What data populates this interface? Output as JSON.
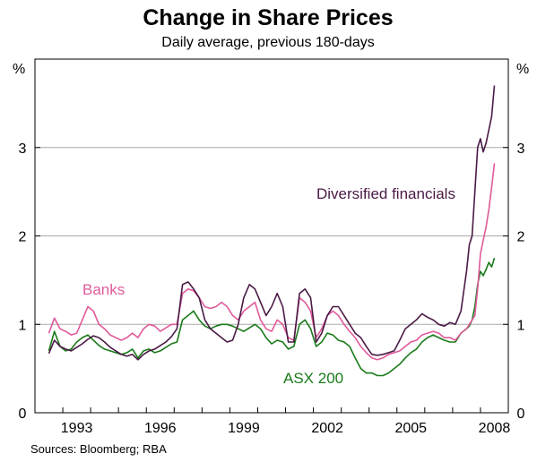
{
  "chart_data": {
    "type": "line",
    "title": "Change in Share Prices",
    "subtitle": "Daily average, previous 180-days",
    "unit_left": "%",
    "unit_right": "%",
    "source": "Sources: Bloomberg; RBA",
    "xlabel": "",
    "ylabel": "",
    "ylim": [
      0,
      4
    ],
    "xlim": [
      1992.0,
      2009.0
    ],
    "yticks": [
      "0",
      "1",
      "2",
      "3"
    ],
    "ytick_values": [
      0,
      1,
      2,
      3
    ],
    "xticks": [
      "1993",
      "1996",
      "1999",
      "2002",
      "2005",
      "2008"
    ],
    "xtick_values": [
      1993,
      1996,
      1999,
      2002,
      2005,
      2008
    ],
    "grid": "horizontal",
    "colors": {
      "diversified": "#4a1a45",
      "banks": "#e05a9a",
      "asx": "#1a7a1a",
      "axis": "#000000",
      "grid": "#aaaaaa"
    },
    "series": [
      {
        "name": "Diversified financials",
        "color": "#4a1a45",
        "label": "Diversified financials",
        "x": [
          1992.5,
          1992.7,
          1992.9,
          1993.1,
          1993.3,
          1993.5,
          1993.7,
          1993.9,
          1994.1,
          1994.3,
          1994.5,
          1994.7,
          1994.9,
          1995.1,
          1995.3,
          1995.5,
          1995.7,
          1995.9,
          1996.1,
          1996.3,
          1996.5,
          1996.7,
          1996.9,
          1997.1,
          1997.3,
          1997.5,
          1997.7,
          1997.9,
          1998.1,
          1998.3,
          1998.5,
          1998.7,
          1998.9,
          1999.1,
          1999.3,
          1999.5,
          1999.7,
          1999.9,
          2000.1,
          2000.3,
          2000.5,
          2000.7,
          2000.9,
          2001.1,
          2001.3,
          2001.5,
          2001.7,
          2001.9,
          2002.1,
          2002.3,
          2002.5,
          2002.7,
          2002.9,
          2003.1,
          2003.3,
          2003.5,
          2003.7,
          2003.9,
          2004.1,
          2004.3,
          2004.5,
          2004.7,
          2004.9,
          2005.1,
          2005.3,
          2005.5,
          2005.7,
          2005.9,
          2006.1,
          2006.3,
          2006.5,
          2006.7,
          2006.9,
          2007.1,
          2007.3,
          2007.5,
          2007.6,
          2007.7,
          2007.8,
          2007.9,
          2008.0,
          2008.1,
          2008.2,
          2008.3,
          2008.4,
          2008.5
        ],
        "values": [
          0.67,
          0.82,
          0.75,
          0.72,
          0.7,
          0.74,
          0.78,
          0.83,
          0.87,
          0.85,
          0.8,
          0.74,
          0.7,
          0.66,
          0.64,
          0.66,
          0.6,
          0.66,
          0.7,
          0.72,
          0.76,
          0.8,
          0.86,
          0.95,
          1.45,
          1.48,
          1.4,
          1.3,
          1.05,
          0.95,
          0.9,
          0.85,
          0.8,
          0.82,
          1.0,
          1.3,
          1.45,
          1.4,
          1.25,
          1.1,
          1.2,
          1.35,
          1.2,
          0.8,
          0.8,
          1.35,
          1.4,
          1.3,
          0.8,
          0.9,
          1.1,
          1.2,
          1.2,
          1.1,
          1.0,
          0.9,
          0.85,
          0.75,
          0.66,
          0.65,
          0.66,
          0.68,
          0.7,
          0.82,
          0.95,
          1.0,
          1.05,
          1.12,
          1.08,
          1.05,
          1.0,
          0.98,
          1.02,
          1.0,
          1.15,
          1.6,
          1.9,
          2.0,
          2.5,
          3.0,
          3.1,
          2.95,
          3.05,
          3.2,
          3.35,
          3.7
        ]
      },
      {
        "name": "Banks",
        "color": "#e05a9a",
        "label": "Banks",
        "x": [
          1992.5,
          1992.7,
          1992.9,
          1993.1,
          1993.3,
          1993.5,
          1993.7,
          1993.9,
          1994.1,
          1994.3,
          1994.5,
          1994.7,
          1994.9,
          1995.1,
          1995.3,
          1995.5,
          1995.7,
          1995.9,
          1996.1,
          1996.3,
          1996.5,
          1996.7,
          1996.9,
          1997.1,
          1997.3,
          1997.5,
          1997.7,
          1997.9,
          1998.1,
          1998.3,
          1998.5,
          1998.7,
          1998.9,
          1999.1,
          1999.3,
          1999.5,
          1999.7,
          1999.9,
          2000.1,
          2000.3,
          2000.5,
          2000.7,
          2000.9,
          2001.1,
          2001.3,
          2001.5,
          2001.7,
          2001.9,
          2002.1,
          2002.3,
          2002.5,
          2002.7,
          2002.9,
          2003.1,
          2003.3,
          2003.5,
          2003.7,
          2003.9,
          2004.1,
          2004.3,
          2004.5,
          2004.7,
          2004.9,
          2005.1,
          2005.3,
          2005.5,
          2005.7,
          2005.9,
          2006.1,
          2006.3,
          2006.5,
          2006.7,
          2006.9,
          2007.1,
          2007.3,
          2007.5,
          2007.6,
          2007.7,
          2007.8,
          2007.9,
          2008.0,
          2008.1,
          2008.2,
          2008.3,
          2008.4,
          2008.5
        ],
        "values": [
          0.9,
          1.07,
          0.95,
          0.92,
          0.88,
          0.9,
          1.05,
          1.2,
          1.15,
          1.0,
          0.95,
          0.88,
          0.85,
          0.82,
          0.85,
          0.9,
          0.85,
          0.95,
          1.0,
          0.98,
          0.92,
          0.96,
          1.0,
          1.0,
          1.35,
          1.4,
          1.38,
          1.3,
          1.2,
          1.18,
          1.2,
          1.25,
          1.2,
          1.1,
          1.05,
          1.15,
          1.2,
          1.25,
          1.05,
          0.95,
          0.92,
          1.05,
          1.0,
          0.85,
          0.82,
          1.3,
          1.25,
          1.15,
          0.85,
          0.95,
          1.1,
          1.15,
          1.1,
          1.0,
          0.92,
          0.85,
          0.75,
          0.68,
          0.62,
          0.6,
          0.62,
          0.66,
          0.68,
          0.7,
          0.75,
          0.8,
          0.82,
          0.88,
          0.9,
          0.92,
          0.9,
          0.85,
          0.85,
          0.82,
          0.9,
          0.95,
          1.0,
          1.05,
          1.1,
          1.4,
          1.8,
          1.95,
          2.1,
          2.3,
          2.55,
          2.82
        ]
      },
      {
        "name": "ASX 200",
        "color": "#1a7a1a",
        "label": "ASX 200",
        "x": [
          1992.5,
          1992.7,
          1992.9,
          1993.1,
          1993.3,
          1993.5,
          1993.7,
          1993.9,
          1994.1,
          1994.3,
          1994.5,
          1994.7,
          1994.9,
          1995.1,
          1995.3,
          1995.5,
          1995.7,
          1995.9,
          1996.1,
          1996.3,
          1996.5,
          1996.7,
          1996.9,
          1997.1,
          1997.3,
          1997.5,
          1997.7,
          1997.9,
          1998.1,
          1998.3,
          1998.5,
          1998.7,
          1998.9,
          1999.1,
          1999.3,
          1999.5,
          1999.7,
          1999.9,
          2000.1,
          2000.3,
          2000.5,
          2000.7,
          2000.9,
          2001.1,
          2001.3,
          2001.5,
          2001.7,
          2001.9,
          2002.1,
          2002.3,
          2002.5,
          2002.7,
          2002.9,
          2003.1,
          2003.3,
          2003.5,
          2003.7,
          2003.9,
          2004.1,
          2004.3,
          2004.5,
          2004.7,
          2004.9,
          2005.1,
          2005.3,
          2005.5,
          2005.7,
          2005.9,
          2006.1,
          2006.3,
          2006.5,
          2006.7,
          2006.9,
          2007.1,
          2007.3,
          2007.5,
          2007.6,
          2007.7,
          2007.8,
          2007.9,
          2008.0,
          2008.1,
          2008.2,
          2008.3,
          2008.4,
          2008.5
        ],
        "values": [
          0.7,
          0.92,
          0.75,
          0.7,
          0.72,
          0.8,
          0.85,
          0.88,
          0.82,
          0.76,
          0.72,
          0.7,
          0.68,
          0.66,
          0.68,
          0.72,
          0.62,
          0.7,
          0.72,
          0.68,
          0.7,
          0.74,
          0.78,
          0.8,
          1.05,
          1.1,
          1.15,
          1.05,
          0.98,
          0.95,
          0.98,
          1.0,
          1.0,
          0.98,
          0.95,
          0.92,
          0.96,
          1.0,
          0.95,
          0.85,
          0.78,
          0.82,
          0.8,
          0.72,
          0.75,
          1.0,
          1.05,
          0.95,
          0.75,
          0.8,
          0.9,
          0.88,
          0.82,
          0.8,
          0.75,
          0.62,
          0.5,
          0.45,
          0.45,
          0.42,
          0.42,
          0.45,
          0.5,
          0.55,
          0.62,
          0.68,
          0.72,
          0.8,
          0.85,
          0.88,
          0.85,
          0.82,
          0.8,
          0.8,
          0.9,
          0.95,
          0.98,
          1.05,
          1.2,
          1.45,
          1.6,
          1.55,
          1.62,
          1.7,
          1.65,
          1.75
        ]
      }
    ]
  }
}
